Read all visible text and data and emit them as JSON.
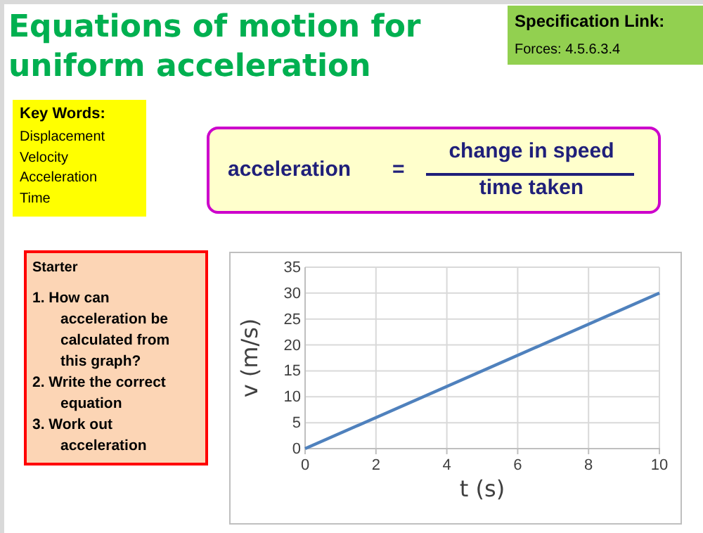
{
  "chart_data": {
    "type": "line",
    "title": "Equations of motion for uniform acceleration",
    "annotations": [
      "Specification Link:",
      "Forces: 4.5.6.3.4",
      "Key Words:",
      "Displacement\nVelocity\nAcceleration\nTime",
      "acceleration",
      "=",
      "change in speed",
      "time taken",
      "Starter",
      "1. How can acceleration be calculated from this graph?",
      "2. Write the correct equation",
      "3. Work out acceleration"
    ],
    "xlabel": "t (s)",
    "ylabel": "v (m/s)",
    "x": [
      0,
      10
    ],
    "series": [
      {
        "color": "#4f81bd",
        "values": [
          0,
          30
        ]
      }
    ],
    "xlim": [
      0,
      10
    ],
    "xticks": [
      0,
      2,
      4,
      6,
      8,
      10
    ],
    "ylim": [
      0,
      35
    ],
    "yticks": [
      0,
      5,
      10,
      15,
      20,
      25,
      30,
      35
    ],
    "grid": true,
    "marker": "none"
  }
}
